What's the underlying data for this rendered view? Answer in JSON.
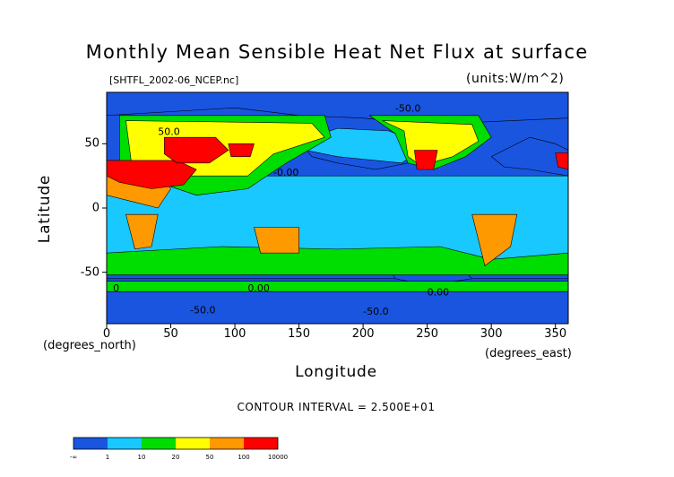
{
  "title": "Monthly Mean Sensible Heat Net Flux at surface",
  "subtitle_left": "[SHTFL_2002-06_NCEP.nc]",
  "subtitle_right": "(units:W/m^2)",
  "contour_note": "CONTOUR INTERVAL = 2.500E+01",
  "chart_data": {
    "type": "heatmap",
    "title": "Monthly Mean Sensible Heat Net Flux at surface",
    "xlabel": "Longitude",
    "ylabel": "Latitude",
    "x_unit_label": "(degrees_east)",
    "y_unit_label": "(degrees_north)",
    "xlim": [
      0,
      360
    ],
    "ylim": [
      -90,
      90
    ],
    "x_ticks": [
      0,
      50,
      100,
      150,
      200,
      250,
      300,
      350
    ],
    "y_ticks": [
      -50,
      0,
      50
    ],
    "colorbar": {
      "bins": [
        "-∞",
        "1",
        "10",
        "20",
        "50",
        "100",
        "10000"
      ],
      "colors": [
        "#1a55e0",
        "#19c8ff",
        "#00dd00",
        "#ffff00",
        "#ff9900",
        "#ff0000"
      ]
    },
    "contour_labels": [
      {
        "text": "50.0",
        "lon": 40,
        "lat": 57
      },
      {
        "text": "-0.00",
        "lon": 130,
        "lat": 25
      },
      {
        "text": "-50.0",
        "lon": 225,
        "lat": 75
      },
      {
        "text": "0.00",
        "lon": 110,
        "lat": -65
      },
      {
        "text": "-50.0",
        "lon": 65,
        "lat": -82
      },
      {
        "text": "-50.0",
        "lon": 200,
        "lat": -83
      },
      {
        "text": "0.00",
        "lon": 250,
        "lat": -68
      },
      {
        "text": "0",
        "lon": 5,
        "lat": -65
      }
    ],
    "regions": [
      {
        "name": "north-polar-ocean",
        "level": 1,
        "poly": [
          [
            0,
            90
          ],
          [
            360,
            90
          ],
          [
            360,
            70
          ],
          [
            250,
            65
          ],
          [
            200,
            70
          ],
          [
            150,
            72
          ],
          [
            100,
            78
          ],
          [
            50,
            75
          ],
          [
            0,
            72
          ]
        ]
      },
      {
        "name": "north-pacific",
        "level": 1,
        "poly": [
          [
            145,
            58
          ],
          [
            205,
            60
          ],
          [
            230,
            50
          ],
          [
            235,
            35
          ],
          [
            210,
            30
          ],
          [
            180,
            35
          ],
          [
            160,
            40
          ]
        ]
      },
      {
        "name": "north-atlantic",
        "level": 1,
        "poly": [
          [
            300,
            40
          ],
          [
            330,
            55
          ],
          [
            350,
            50
          ],
          [
            360,
            45
          ],
          [
            360,
            25
          ],
          [
            330,
            30
          ],
          [
            310,
            32
          ]
        ]
      },
      {
        "name": "southern-ocean-blue",
        "level": 1,
        "poly": [
          [
            0,
            -55
          ],
          [
            360,
            -55
          ],
          [
            360,
            -90
          ],
          [
            0,
            -90
          ]
        ]
      },
      {
        "name": "se-pacific-blue",
        "level": 1,
        "poly": [
          [
            220,
            -45
          ],
          [
            270,
            -40
          ],
          [
            285,
            -55
          ],
          [
            250,
            -60
          ],
          [
            225,
            -55
          ]
        ]
      },
      {
        "name": "tropics-cyan",
        "level": 2,
        "poly": [
          [
            0,
            25
          ],
          [
            360,
            25
          ],
          [
            360,
            -45
          ],
          [
            0,
            -45
          ]
        ]
      },
      {
        "name": "north-cyan-belt",
        "level": 2,
        "poly": [
          [
            140,
            48
          ],
          [
            180,
            40
          ],
          [
            230,
            35
          ],
          [
            250,
            48
          ],
          [
            220,
            60
          ],
          [
            180,
            62
          ]
        ]
      },
      {
        "name": "antarctic-green-margin",
        "level": 3,
        "poly": [
          [
            0,
            -57
          ],
          [
            360,
            -57
          ],
          [
            360,
            -65
          ],
          [
            0,
            -65
          ]
        ]
      },
      {
        "name": "eurasia-green",
        "level": 3,
        "poly": [
          [
            10,
            72
          ],
          [
            170,
            72
          ],
          [
            175,
            55
          ],
          [
            140,
            35
          ],
          [
            110,
            15
          ],
          [
            70,
            10
          ],
          [
            40,
            20
          ],
          [
            10,
            30
          ]
        ]
      },
      {
        "name": "southern-green-belt",
        "level": 3,
        "poly": [
          [
            0,
            -35
          ],
          [
            90,
            -30
          ],
          [
            180,
            -32
          ],
          [
            260,
            -30
          ],
          [
            300,
            -40
          ],
          [
            360,
            -35
          ],
          [
            360,
            -52
          ],
          [
            0,
            -52
          ]
        ]
      },
      {
        "name": "north-america-green",
        "level": 3,
        "poly": [
          [
            205,
            72
          ],
          [
            290,
            72
          ],
          [
            300,
            55
          ],
          [
            280,
            40
          ],
          [
            255,
            30
          ],
          [
            235,
            35
          ],
          [
            225,
            58
          ]
        ]
      },
      {
        "name": "eurasia-yellow",
        "level": 4,
        "poly": [
          [
            15,
            68
          ],
          [
            160,
            66
          ],
          [
            170,
            55
          ],
          [
            130,
            42
          ],
          [
            110,
            25
          ],
          [
            60,
            25
          ],
          [
            20,
            30
          ]
        ]
      },
      {
        "name": "north-america-yellow",
        "level": 4,
        "poly": [
          [
            215,
            68
          ],
          [
            285,
            65
          ],
          [
            290,
            52
          ],
          [
            270,
            40
          ],
          [
            245,
            33
          ],
          [
            235,
            40
          ],
          [
            232,
            60
          ]
        ]
      },
      {
        "name": "africa-orange",
        "level": 5,
        "poly": [
          [
            0,
            35
          ],
          [
            35,
            35
          ],
          [
            50,
            15
          ],
          [
            40,
            0
          ],
          [
            20,
            5
          ],
          [
            0,
            10
          ]
        ]
      },
      {
        "name": "southern-africa-orange",
        "level": 5,
        "poly": [
          [
            15,
            -5
          ],
          [
            40,
            -5
          ],
          [
            35,
            -30
          ],
          [
            22,
            -32
          ]
        ]
      },
      {
        "name": "australia-orange",
        "level": 5,
        "poly": [
          [
            115,
            -15
          ],
          [
            150,
            -15
          ],
          [
            150,
            -35
          ],
          [
            120,
            -35
          ]
        ]
      },
      {
        "name": "south-america-orange",
        "level": 5,
        "poly": [
          [
            285,
            -5
          ],
          [
            320,
            -5
          ],
          [
            315,
            -30
          ],
          [
            295,
            -45
          ],
          [
            290,
            -25
          ]
        ]
      },
      {
        "name": "sahara-arabia-red",
        "level": 6,
        "poly": [
          [
            0,
            37
          ],
          [
            55,
            37
          ],
          [
            70,
            30
          ],
          [
            60,
            18
          ],
          [
            35,
            15
          ],
          [
            10,
            20
          ],
          [
            0,
            25
          ]
        ]
      },
      {
        "name": "central-asia-red",
        "level": 6,
        "poly": [
          [
            45,
            55
          ],
          [
            85,
            55
          ],
          [
            95,
            45
          ],
          [
            80,
            35
          ],
          [
            55,
            35
          ],
          [
            45,
            42
          ]
        ]
      },
      {
        "name": "sw-north-america-red",
        "level": 6,
        "poly": [
          [
            240,
            45
          ],
          [
            258,
            45
          ],
          [
            255,
            30
          ],
          [
            242,
            30
          ]
        ]
      },
      {
        "name": "iberia-red",
        "level": 6,
        "poly": [
          [
            350,
            43
          ],
          [
            360,
            43
          ],
          [
            360,
            30
          ],
          [
            352,
            32
          ]
        ]
      },
      {
        "name": "mongolia-red",
        "level": 6,
        "poly": [
          [
            95,
            50
          ],
          [
            115,
            50
          ],
          [
            112,
            40
          ],
          [
            97,
            40
          ]
        ]
      }
    ]
  }
}
